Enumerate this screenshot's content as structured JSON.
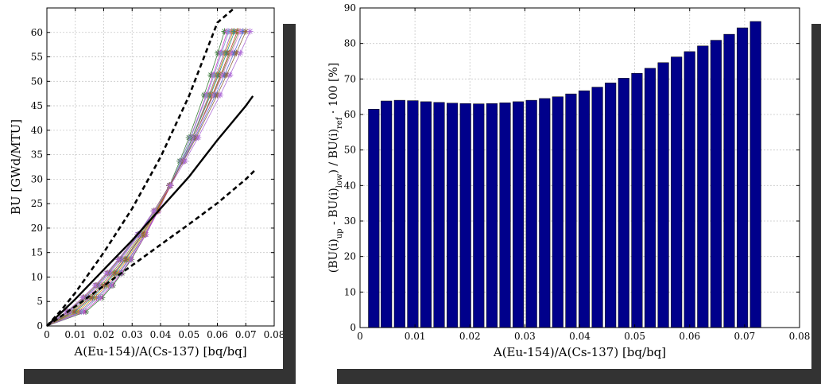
{
  "chart_data": [
    {
      "type": "line",
      "xlabel": "A(Eu-154)/A(Cs-137)  [bq/bq]",
      "ylabel": "BU [GWd/MTU]",
      "xlim": [
        0,
        0.08
      ],
      "ylim": [
        0,
        65
      ],
      "xticks": [
        0,
        0.01,
        0.02,
        0.03,
        0.04,
        0.05,
        0.06,
        0.07,
        0.08
      ],
      "xtick_labels": [
        "0",
        "0.01",
        "0.02",
        "0.03",
        "0.04",
        "0.05",
        "0.06",
        "0.07",
        "0.08"
      ],
      "yticks": [
        0,
        5,
        10,
        15,
        20,
        25,
        30,
        35,
        40,
        45,
        50,
        55,
        60
      ],
      "ytick_labels": [
        "0",
        "5",
        "10",
        "15",
        "20",
        "25",
        "30",
        "35",
        "40",
        "45",
        "50",
        "55",
        "60"
      ],
      "grid": true,
      "burnup_steps": [
        0,
        2.9,
        5.8,
        8.3,
        10.8,
        13.6,
        18.7,
        23.5,
        28.7,
        33.7,
        38.5,
        47.2,
        51.3,
        55.8,
        60.2
      ],
      "series": [
        {
          "style": "dashed-black",
          "x": [
            0,
            0.005,
            0.01,
            0.02,
            0.03,
            0.04,
            0.05,
            0.06,
            0.066
          ],
          "y": [
            0,
            3.2,
            6.8,
            15.0,
            24.0,
            34.5,
            47.0,
            62.0,
            71.0
          ]
        },
        {
          "style": "solid-black",
          "x": [
            0,
            0.005,
            0.01,
            0.02,
            0.03,
            0.04,
            0.05,
            0.06,
            0.07,
            0.0725
          ],
          "y": [
            0,
            2.7,
            5.5,
            11.5,
            17.5,
            24.0,
            30.5,
            38.0,
            45.0,
            47.0
          ]
        },
        {
          "style": "dashed-black",
          "x": [
            0,
            0.01,
            0.02,
            0.03,
            0.04,
            0.05,
            0.06,
            0.07,
            0.0735
          ],
          "y": [
            0,
            4.0,
            8.2,
            12.4,
            16.6,
            20.8,
            25.1,
            30.0,
            32.0
          ]
        }
      ],
      "ensemble": {
        "count": 12,
        "colors": [
          "#3a7d3a",
          "#d13fd1",
          "#7aa7c7",
          "#9b59b6",
          "#d4a017",
          "#2e8b8b",
          "#c0392b",
          "#6d9e3f",
          "#e07ad0",
          "#5b6dd1",
          "#8e6b3e",
          "#b06fd8"
        ],
        "x_at_max_burnup": [
          0.0625,
          0.0635,
          0.064,
          0.065,
          0.0655,
          0.066,
          0.067,
          0.0675,
          0.068,
          0.069,
          0.07,
          0.0715
        ]
      }
    },
    {
      "type": "bar",
      "xlabel": "A(Eu-154)/A(Cs-137)  [bq/bq]",
      "ylabel": "(BU(i)up - BU(i)low) / BU(i)ref · 100   [%]",
      "xlim": [
        0,
        0.08
      ],
      "ylim": [
        0,
        90
      ],
      "xticks": [
        0,
        0.01,
        0.02,
        0.03,
        0.04,
        0.05,
        0.06,
        0.07,
        0.08
      ],
      "xtick_labels": [
        "0",
        "0.01",
        "0.02",
        "0.03",
        "0.04",
        "0.05",
        "0.06",
        "0.07",
        "0.08"
      ],
      "yticks": [
        0,
        10,
        20,
        30,
        40,
        50,
        60,
        70,
        80,
        90
      ],
      "ytick_labels": [
        "0",
        "10",
        "20",
        "30",
        "40",
        "50",
        "60",
        "70",
        "80",
        "90"
      ],
      "grid": true,
      "bar_color": "#00008b",
      "x": [
        0.0025,
        0.0048,
        0.0072,
        0.0096,
        0.012,
        0.0144,
        0.0168,
        0.0192,
        0.0216,
        0.024,
        0.0264,
        0.0288,
        0.0312,
        0.0336,
        0.036,
        0.0384,
        0.0408,
        0.0432,
        0.0456,
        0.048,
        0.0504,
        0.0528,
        0.0552,
        0.0576,
        0.06,
        0.0624,
        0.0648,
        0.0672,
        0.0696,
        0.072
      ],
      "values": [
        61.5,
        63.8,
        64.0,
        63.9,
        63.6,
        63.4,
        63.2,
        63.1,
        63.0,
        63.1,
        63.3,
        63.6,
        64.0,
        64.5,
        65.0,
        65.8,
        66.7,
        67.7,
        68.9,
        70.2,
        71.6,
        73.0,
        74.6,
        76.2,
        77.7,
        79.3,
        80.9,
        82.6,
        84.4,
        86.2
      ]
    }
  ]
}
